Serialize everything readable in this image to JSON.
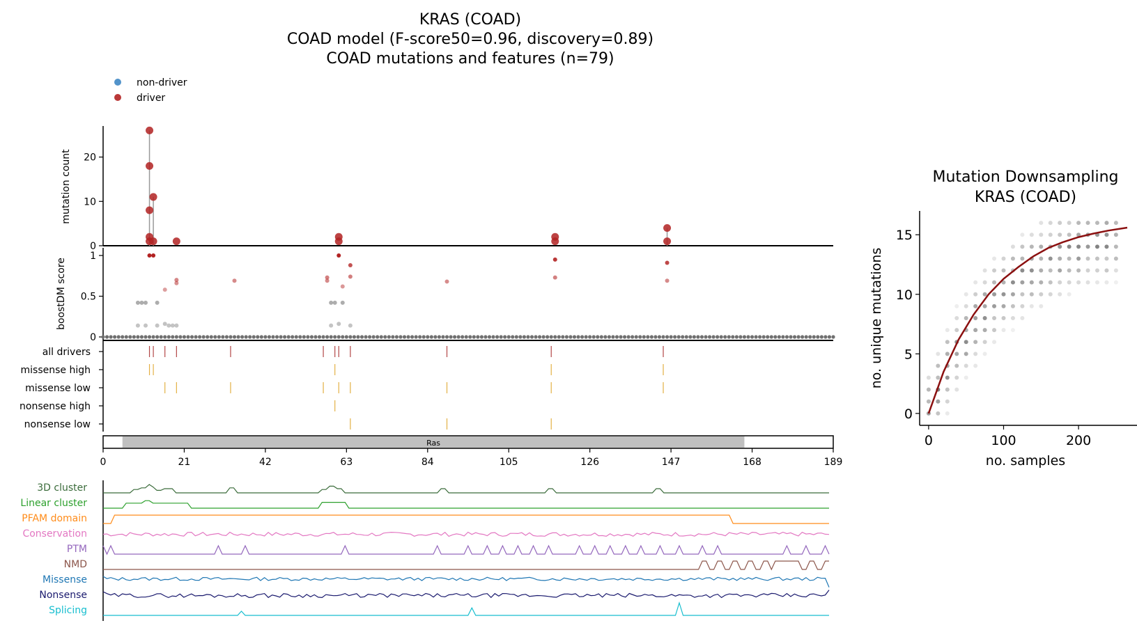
{
  "figure": {
    "title_lines": [
      "KRAS (COAD)",
      "COAD model (F-score50=0.96, discovery=0.89)",
      "COAD mutations and features (n=79)"
    ],
    "legend": [
      {
        "label": "non-driver",
        "color": "#3f87c4"
      },
      {
        "label": "driver",
        "color": "#b22222"
      }
    ],
    "colors": {
      "driver": "#b22222",
      "non_driver_grey": "#777777",
      "track_high": "#e0a830",
      "fit_curve": "#8b1010",
      "ras_domain": "#c0c0c0"
    }
  },
  "chart_data": [
    {
      "type": "scatter",
      "panel": "mutation-count",
      "ylabel": "mutation count",
      "yticks": [
        0,
        10,
        20
      ],
      "ylim": [
        0,
        27
      ],
      "xlim": [
        0,
        189
      ],
      "points": [
        {
          "x": 12,
          "y": 26,
          "driver": true
        },
        {
          "x": 12,
          "y": 18,
          "driver": true
        },
        {
          "x": 12,
          "y": 8,
          "driver": true
        },
        {
          "x": 12,
          "y": 2,
          "driver": true
        },
        {
          "x": 12,
          "y": 1,
          "driver": true
        },
        {
          "x": 13,
          "y": 11,
          "driver": true
        },
        {
          "x": 13,
          "y": 1,
          "driver": true
        },
        {
          "x": 19,
          "y": 1,
          "driver": true
        },
        {
          "x": 61,
          "y": 2,
          "driver": true
        },
        {
          "x": 61,
          "y": 1,
          "driver": true
        },
        {
          "x": 117,
          "y": 2,
          "driver": true
        },
        {
          "x": 117,
          "y": 1,
          "driver": true
        },
        {
          "x": 146,
          "y": 4,
          "driver": true
        },
        {
          "x": 146,
          "y": 1,
          "driver": true
        }
      ]
    },
    {
      "type": "scatter",
      "panel": "boostdm-score",
      "ylabel": "boostDM score",
      "yticks": [
        0,
        0.5,
        1
      ],
      "ylim": [
        0,
        1
      ],
      "xlim": [
        0,
        189
      ],
      "points": [
        {
          "x": 12,
          "y": 1.0,
          "driver": true
        },
        {
          "x": 13,
          "y": 1.0,
          "driver": true
        },
        {
          "x": 61,
          "y": 1.0,
          "driver": true
        },
        {
          "x": 117,
          "y": 0.95,
          "driver": true
        },
        {
          "x": 146,
          "y": 0.91,
          "driver": true
        },
        {
          "x": 64,
          "y": 0.88,
          "driver": true
        },
        {
          "x": 117,
          "y": 0.73,
          "driver": true
        },
        {
          "x": 58,
          "y": 0.73,
          "driver": true
        },
        {
          "x": 64,
          "y": 0.74,
          "driver": true
        },
        {
          "x": 19,
          "y": 0.7,
          "driver": true
        },
        {
          "x": 34,
          "y": 0.69,
          "driver": true
        },
        {
          "x": 89,
          "y": 0.68,
          "driver": true
        },
        {
          "x": 146,
          "y": 0.69,
          "driver": true
        },
        {
          "x": 58,
          "y": 0.69,
          "driver": true
        },
        {
          "x": 19,
          "y": 0.66,
          "driver": true
        },
        {
          "x": 62,
          "y": 0.62,
          "driver": true
        },
        {
          "x": 16,
          "y": 0.58,
          "driver": true
        },
        {
          "x": 9,
          "y": 0.42,
          "driver": false
        },
        {
          "x": 10,
          "y": 0.42,
          "driver": false
        },
        {
          "x": 11,
          "y": 0.42,
          "driver": false
        },
        {
          "x": 14,
          "y": 0.42,
          "driver": false
        },
        {
          "x": 59,
          "y": 0.42,
          "driver": false
        },
        {
          "x": 60,
          "y": 0.42,
          "driver": false
        },
        {
          "x": 62,
          "y": 0.42,
          "driver": false
        },
        {
          "x": 9,
          "y": 0.14,
          "driver": false
        },
        {
          "x": 11,
          "y": 0.14,
          "driver": false
        },
        {
          "x": 14,
          "y": 0.14,
          "driver": false
        },
        {
          "x": 16,
          "y": 0.16,
          "driver": false
        },
        {
          "x": 17,
          "y": 0.14,
          "driver": false
        },
        {
          "x": 18,
          "y": 0.14,
          "driver": false
        },
        {
          "x": 19,
          "y": 0.14,
          "driver": false
        },
        {
          "x": 59,
          "y": 0.14,
          "driver": false
        },
        {
          "x": 61,
          "y": 0.16,
          "driver": false
        },
        {
          "x": 64,
          "y": 0.14,
          "driver": false
        }
      ]
    },
    {
      "type": "scatter",
      "panel": "mutation-downsampling",
      "title_lines": [
        "Mutation Downsampling",
        "KRAS (COAD)"
      ],
      "xlabel": "no. samples",
      "ylabel": "no. unique mutations",
      "xticks": [
        0,
        100,
        200
      ],
      "yticks": [
        0,
        5,
        10,
        15
      ],
      "xlim": [
        -12,
        278
      ],
      "ylim": [
        -1,
        17
      ],
      "fit_curve": [
        [
          0,
          0
        ],
        [
          20,
          3.5
        ],
        [
          40,
          6.2
        ],
        [
          60,
          8.3
        ],
        [
          80,
          10.0
        ],
        [
          100,
          11.3
        ],
        [
          120,
          12.3
        ],
        [
          140,
          13.2
        ],
        [
          160,
          13.9
        ],
        [
          180,
          14.4
        ],
        [
          200,
          14.8
        ],
        [
          220,
          15.1
        ],
        [
          240,
          15.35
        ],
        [
          265,
          15.6
        ]
      ]
    }
  ],
  "tracks": {
    "labels": [
      "all drivers",
      "missense high",
      "missense low",
      "nonsense high",
      "nonsense low"
    ],
    "ticks": [
      [
        12,
        13,
        16,
        19,
        33,
        57,
        60,
        61,
        64,
        89,
        116,
        145
      ],
      [
        12,
        13,
        60,
        116,
        145
      ],
      [
        16,
        19,
        33,
        57,
        61,
        64,
        89,
        116,
        145
      ],
      [
        60
      ],
      [
        64,
        89,
        116
      ]
    ],
    "domain": {
      "label": "Ras",
      "start": 5,
      "end": 166
    },
    "xticks": [
      0,
      21,
      42,
      63,
      84,
      105,
      126,
      147,
      168,
      189
    ]
  },
  "features": [
    {
      "label": "3D cluster",
      "color": "#3a6b3a"
    },
    {
      "label": "Linear cluster",
      "color": "#2ca02c"
    },
    {
      "label": "PFAM domain",
      "color": "#ff8c1a"
    },
    {
      "label": "Conservation",
      "color": "#e377c2"
    },
    {
      "label": "PTM",
      "color": "#9467bd"
    },
    {
      "label": "NMD",
      "color": "#8c564b"
    },
    {
      "label": "Missense",
      "color": "#1f77b4"
    },
    {
      "label": "Nonsense",
      "color": "#1a1a6e"
    },
    {
      "label": "Splicing",
      "color": "#17becf"
    }
  ]
}
